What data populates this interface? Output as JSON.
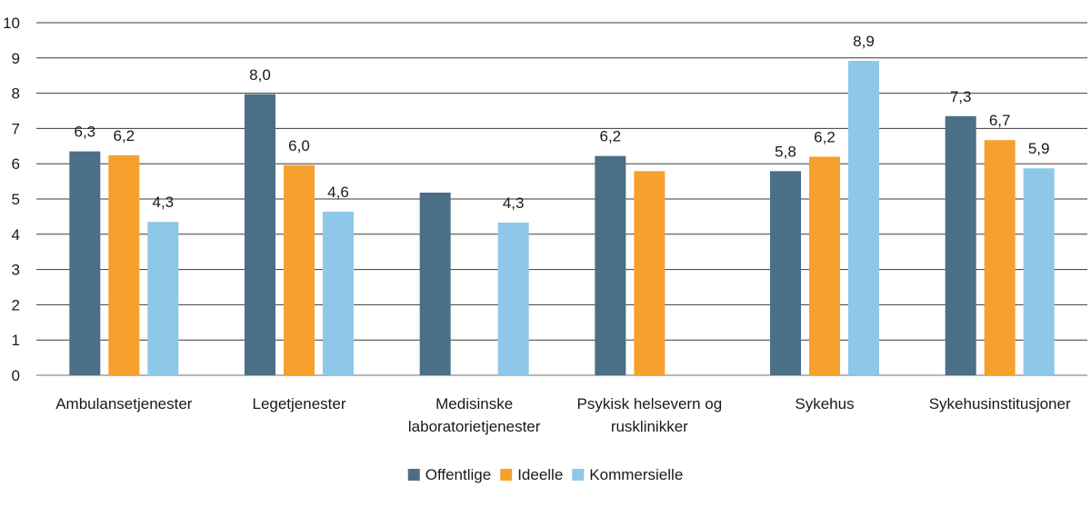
{
  "chart_data": {
    "type": "bar",
    "categories": [
      [
        "Ambulansetjenester"
      ],
      [
        "Legetjenester"
      ],
      [
        "Medisinske",
        "laboratorietjenester"
      ],
      [
        "Psykisk helsevern og",
        "rusklinikker"
      ],
      [
        "Sykehus"
      ],
      [
        "Sykehusinstitusjoner"
      ]
    ],
    "series": [
      {
        "name": "Offentlige",
        "color": "#4a6f86",
        "values": [
          6.35,
          7.97,
          5.18,
          6.22,
          5.79,
          7.35
        ],
        "labels": [
          "6,3",
          "8,0",
          "",
          "6,2",
          "5,8",
          "7,3"
        ]
      },
      {
        "name": "Ideelle",
        "color": "#f6a02d",
        "values": [
          6.24,
          5.96,
          null,
          5.79,
          6.2,
          6.67
        ],
        "labels": [
          "6,2",
          "6,0",
          "",
          "",
          "6,2",
          "6,7"
        ]
      },
      {
        "name": "Kommersielle",
        "color": "#8dc8e8",
        "values": [
          4.35,
          4.64,
          4.33,
          null,
          8.92,
          5.87
        ],
        "labels": [
          "4,3",
          "4,6",
          "4,3",
          "",
          "8,9",
          "5,9"
        ]
      }
    ],
    "ylim": [
      0,
      10
    ],
    "yticks": [
      "0",
      "1",
      "2",
      "3",
      "4",
      "5",
      "6",
      "7",
      "8",
      "9",
      "10"
    ],
    "grid": true,
    "legend_position": "bottom",
    "title": "",
    "xlabel": "",
    "ylabel": ""
  }
}
